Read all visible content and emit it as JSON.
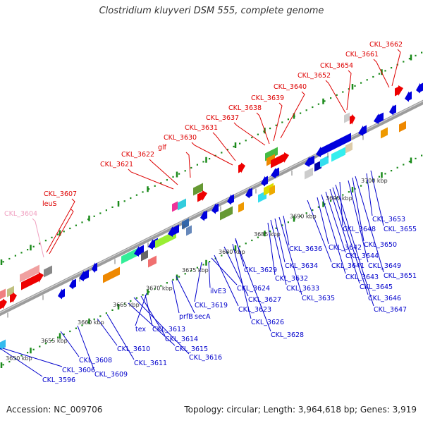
{
  "title": "Clostridium kluyveri DSM 555, complete genome",
  "footer": {
    "accession": "Accession: NC_009706",
    "summary": "Topology: circular; Length: 3,964,618 bp; Genes: 3,919"
  },
  "colors": {
    "label_top": "#dd0000",
    "label_bottom": "#0000cc",
    "label_faded": "#f0a0c0",
    "tick": "#1a8a1a",
    "backbone": "#999999",
    "gene_blue": "#0000dd",
    "gene_red": "#ee0000"
  },
  "scale_labels": [
    "3650 kbp",
    "3655 kbp",
    "3660 kbp",
    "3665 kbp",
    "3670 kbp",
    "3675 kbp",
    "3680 kbp",
    "3685 kbp",
    "3690 kbp",
    "3695 kbp",
    "3700 kbp"
  ],
  "top_labels": [
    "CKL_3604",
    "leuS",
    "CKL_3607",
    "CKL_3621",
    "CKL_3622",
    "glf",
    "CKL_3630",
    "CKL_3631",
    "CKL_3637",
    "CKL_3638",
    "CKL_3639",
    "CKL_3640",
    "CKL_3652",
    "CKL_3654",
    "CKL_3661",
    "CKL_3662"
  ],
  "bottom_labels": [
    "CKL_3596",
    "CKL_3606",
    "CKL_3608",
    "CKL_3609",
    "CKL_3610",
    "CKL_3611",
    "CKL_3615",
    "CKL_3616",
    "CKL_3614",
    "CKL_3613",
    "tex",
    "prfB",
    "secA",
    "CKL_3619",
    "ilvE3",
    "CKL_3624",
    "CKL_3623",
    "CKL_3627",
    "CKL_3626",
    "CKL_3628",
    "CKL_3629",
    "CKL_3632",
    "CKL_3633",
    "CKL_3634",
    "CKL_3635",
    "CKL_3636",
    "CKL_3641",
    "CKL_3642",
    "CKL_3643",
    "CKL_3644",
    "CKL_3645",
    "CKL_3646",
    "CKL_3647",
    "CKL_3648",
    "CKL_3649",
    "CKL_3650",
    "CKL_3651",
    "CKL_3653",
    "CKL_3655"
  ]
}
